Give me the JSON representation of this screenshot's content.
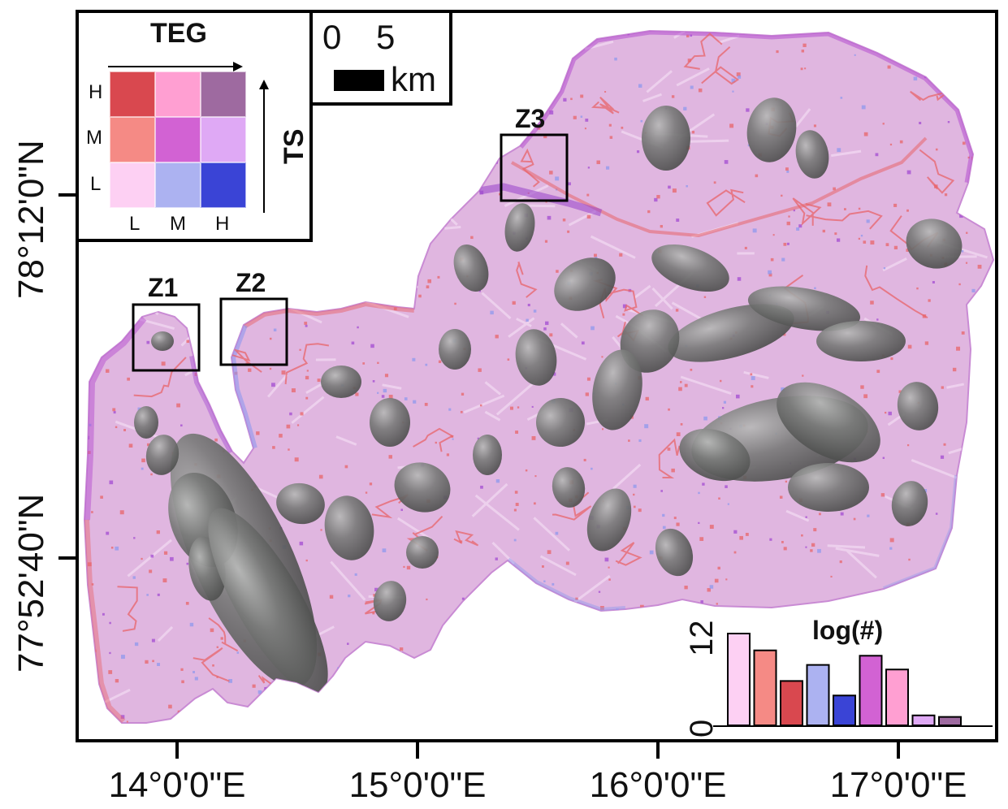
{
  "map": {
    "legend": {
      "x_axis_title": "TEG",
      "y_axis_title": "TS",
      "row_labels": [
        "H",
        "M",
        "L"
      ],
      "col_labels": [
        "L",
        "M",
        "H"
      ],
      "colors": [
        [
          "#d9484f",
          "#ff9fd2",
          "#9e6aa0"
        ],
        [
          "#f58a85",
          "#d262d3",
          "#dfa9f5"
        ],
        [
          "#fdd0f3",
          "#acb2f1",
          "#3a44d6"
        ]
      ]
    },
    "scalebar": {
      "start": "0",
      "end": "5",
      "unit": "km"
    },
    "lat_labels": [
      "78°12'0\"N",
      "77°52'40\"N"
    ],
    "lon_labels": [
      "14°0'0\"E",
      "15°0'0\"E",
      "16°0'0\"E",
      "17°0'0\"E"
    ],
    "zoom_boxes": [
      "Z1",
      "Z2",
      "Z3"
    ],
    "land_color": "#e0b6e0",
    "glacier_color": "#6f7070",
    "coast_accent_colors": [
      "#e8646a",
      "#a34bd2",
      "#8f98ee"
    ]
  },
  "histogram": {
    "title": "log(#)",
    "y_ticks": [
      "0",
      "12"
    ],
    "ylim": [
      0,
      12
    ]
  },
  "chart_data": {
    "type": "bar",
    "title": "log(#)",
    "categories": [
      "L-L",
      "L-M",
      "L-H",
      "M-L",
      "M-M",
      "M-H",
      "H-L",
      "H-M",
      "H-H"
    ],
    "values": [
      12,
      9.8,
      5.8,
      7.9,
      3.9,
      9.1,
      7.3,
      1.3,
      1.1
    ],
    "colors": [
      "#fdd0f3",
      "#f58a85",
      "#d9484f",
      "#acb2f1",
      "#3a44d6",
      "#d262d3",
      "#ff9fd2",
      "#dfa9f5",
      "#9e6aa0"
    ],
    "ylim": [
      0,
      12
    ],
    "y_ticks": [
      0,
      12
    ]
  }
}
